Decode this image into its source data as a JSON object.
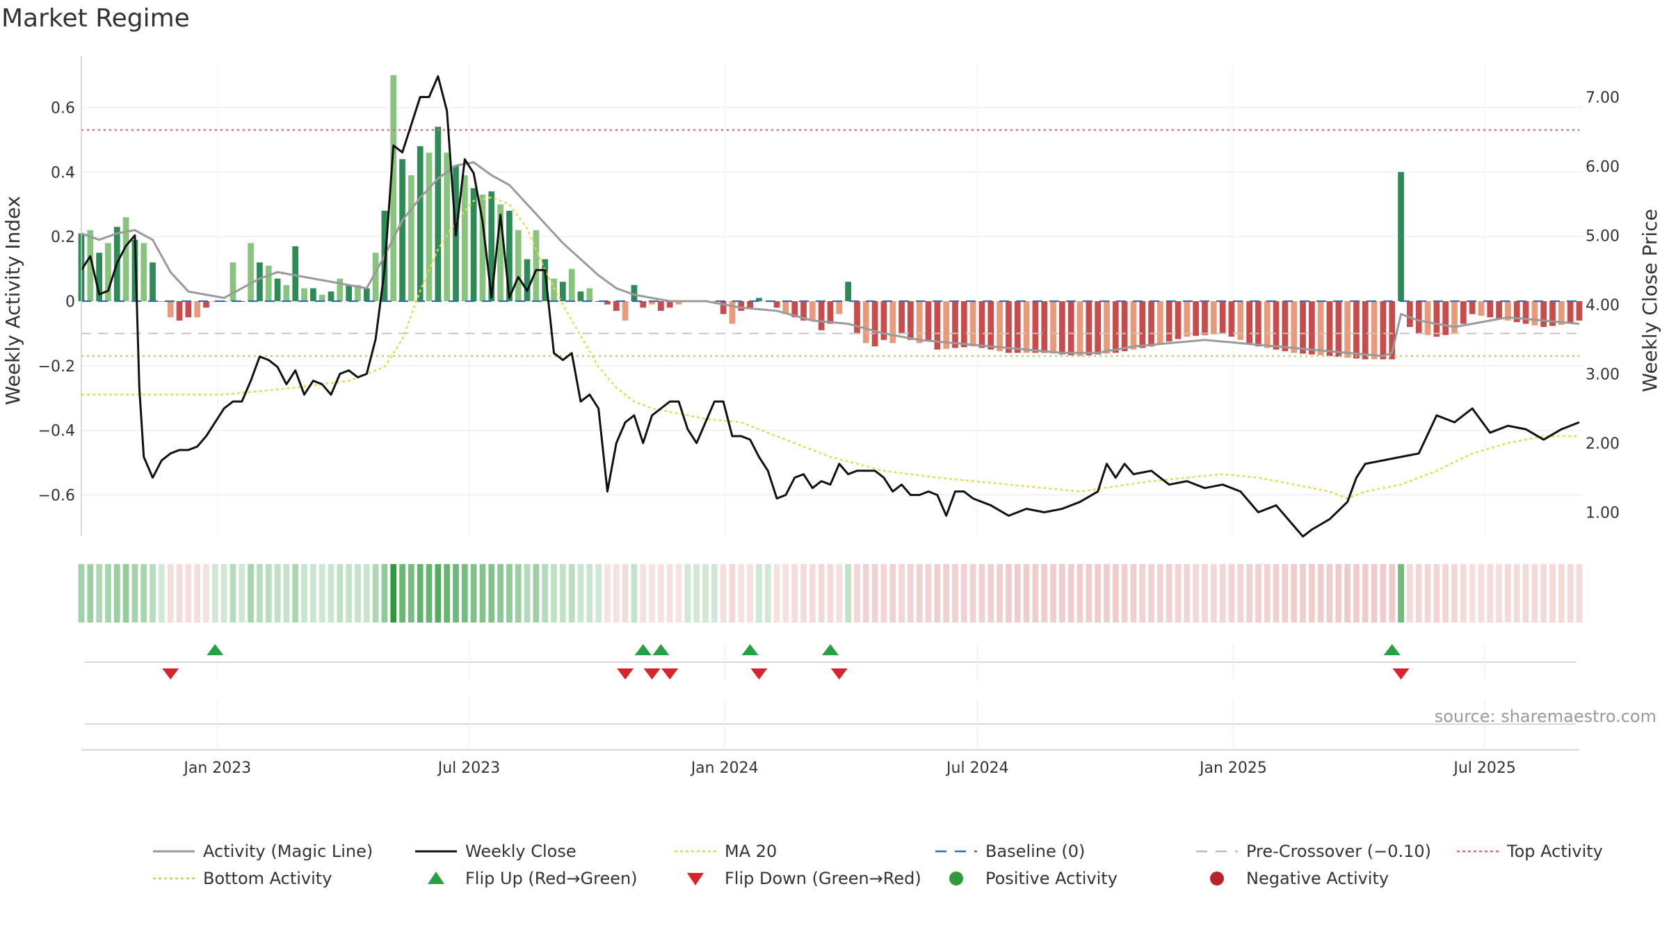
{
  "title": "Market Regime",
  "source": "source: sharemaestro.com",
  "chart_data": {
    "type": "bar+line",
    "x_range": [
      "2022-09-25",
      "2025-09-07"
    ],
    "x_ticks": [
      "Jan 2023",
      "Jul 2023",
      "Jan 2024",
      "Jul 2024",
      "Jan 2025",
      "Jul 2025"
    ],
    "x_tick_dates": [
      "2023-01-01",
      "2023-07-01",
      "2024-01-01",
      "2024-07-01",
      "2025-01-01",
      "2025-07-01"
    ],
    "ylabel_left": "Weekly Activity Index",
    "ylabel_right": "Weekly Close Price",
    "ylim_left": [
      -0.75,
      0.75
    ],
    "ylim_right": [
      0.5,
      7.5
    ],
    "y_ticks_left": [
      0.6,
      0.4,
      0.2,
      0,
      -0.2,
      -0.4,
      -0.6
    ],
    "y_tick_labels_left": [
      "0.6",
      "0.4",
      "0.2",
      "0",
      "−0.2",
      "−0.4",
      "−0.6"
    ],
    "y_ticks_right": [
      7,
      6,
      5,
      4,
      3,
      2,
      1
    ],
    "y_tick_labels_right": [
      "7.00",
      "6.00",
      "5.00",
      "4.00",
      "3.00",
      "2.00",
      "1.00"
    ],
    "reference_lines": {
      "top_activity": 0.53,
      "bottom_activity": -0.17,
      "pre_crossover": -0.1,
      "baseline": 0
    },
    "activity_keypoints": [
      [
        0,
        0.21
      ],
      [
        1,
        0.22
      ],
      [
        2,
        0.15
      ],
      [
        3,
        0.18
      ],
      [
        4,
        0.23
      ],
      [
        5,
        0.26
      ],
      [
        6,
        0.19
      ],
      [
        7,
        0.18
      ],
      [
        8,
        0.12
      ],
      [
        9,
        0.0
      ],
      [
        10,
        -0.05
      ],
      [
        11,
        -0.06
      ],
      [
        12,
        -0.05
      ],
      [
        13,
        -0.05
      ],
      [
        14,
        -0.02
      ],
      [
        15,
        0.0
      ],
      [
        16,
        0.0
      ],
      [
        17,
        0.12
      ],
      [
        18,
        0.0
      ],
      [
        19,
        0.18
      ],
      [
        20,
        0.12
      ],
      [
        21,
        0.11
      ],
      [
        22,
        0.07
      ],
      [
        23,
        0.05
      ],
      [
        24,
        0.17
      ],
      [
        25,
        0.04
      ],
      [
        26,
        0.04
      ],
      [
        27,
        0.02
      ],
      [
        28,
        0.03
      ],
      [
        29,
        0.07
      ],
      [
        30,
        0.05
      ],
      [
        31,
        0.05
      ],
      [
        32,
        0.04
      ],
      [
        33,
        0.15
      ],
      [
        34,
        0.28
      ],
      [
        35,
        0.7
      ],
      [
        36,
        0.44
      ],
      [
        37,
        0.39
      ],
      [
        38,
        0.48
      ],
      [
        39,
        0.46
      ],
      [
        40,
        0.54
      ],
      [
        41,
        0.46
      ],
      [
        42,
        0.42
      ],
      [
        43,
        0.39
      ],
      [
        44,
        0.35
      ],
      [
        45,
        0.33
      ],
      [
        46,
        0.34
      ],
      [
        47,
        0.3
      ],
      [
        48,
        0.28
      ],
      [
        49,
        0.22
      ],
      [
        50,
        0.13
      ],
      [
        51,
        0.22
      ],
      [
        52,
        0.13
      ],
      [
        53,
        0.07
      ],
      [
        54,
        0.06
      ],
      [
        55,
        0.1
      ],
      [
        56,
        0.03
      ],
      [
        57,
        0.04
      ],
      [
        58,
        0.0
      ],
      [
        59,
        -0.01
      ],
      [
        60,
        -0.03
      ],
      [
        61,
        -0.06
      ],
      [
        62,
        0.05
      ],
      [
        63,
        -0.02
      ],
      [
        64,
        -0.01
      ],
      [
        65,
        -0.03
      ],
      [
        66,
        -0.02
      ],
      [
        67,
        -0.01
      ],
      [
        68,
        0.0
      ],
      [
        69,
        0.0
      ],
      [
        70,
        0.0
      ],
      [
        71,
        0.0
      ],
      [
        72,
        -0.04
      ],
      [
        73,
        -0.07
      ],
      [
        74,
        -0.03
      ],
      [
        75,
        -0.02
      ],
      [
        76,
        0.01
      ],
      [
        77,
        0.0
      ],
      [
        78,
        -0.02
      ],
      [
        79,
        -0.04
      ],
      [
        80,
        -0.05
      ],
      [
        81,
        -0.06
      ],
      [
        82,
        -0.06
      ],
      [
        83,
        -0.09
      ],
      [
        84,
        -0.07
      ],
      [
        85,
        -0.04
      ],
      [
        86,
        0.06
      ],
      [
        87,
        -0.1
      ],
      [
        88,
        -0.13
      ],
      [
        89,
        -0.14
      ],
      [
        90,
        -0.12
      ],
      [
        91,
        -0.13
      ],
      [
        92,
        -0.1
      ],
      [
        93,
        -0.12
      ],
      [
        94,
        -0.13
      ],
      [
        95,
        -0.12
      ],
      [
        96,
        -0.15
      ],
      [
        100,
        -0.14
      ],
      [
        104,
        -0.16
      ],
      [
        108,
        -0.16
      ],
      [
        112,
        -0.17
      ],
      [
        116,
        -0.16
      ],
      [
        120,
        -0.14
      ],
      [
        124,
        -0.11
      ],
      [
        128,
        -0.1
      ],
      [
        132,
        -0.14
      ],
      [
        136,
        -0.16
      ],
      [
        140,
        -0.17
      ],
      [
        144,
        -0.18
      ],
      [
        147,
        -0.18
      ],
      [
        148,
        0.4
      ],
      [
        149,
        -0.08
      ],
      [
        150,
        -0.1
      ],
      [
        152,
        -0.11
      ],
      [
        154,
        -0.1
      ],
      [
        156,
        -0.04
      ],
      [
        158,
        -0.05
      ],
      [
        160,
        -0.06
      ],
      [
        164,
        -0.08
      ],
      [
        167,
        -0.07
      ],
      [
        168,
        -0.06
      ]
    ],
    "magic_line_keypoints": [
      [
        0,
        0.21
      ],
      [
        2,
        0.19
      ],
      [
        4,
        0.21
      ],
      [
        6,
        0.22
      ],
      [
        8,
        0.19
      ],
      [
        10,
        0.09
      ],
      [
        12,
        0.03
      ],
      [
        14,
        0.02
      ],
      [
        16,
        0.01
      ],
      [
        18,
        0.04
      ],
      [
        20,
        0.07
      ],
      [
        22,
        0.09
      ],
      [
        24,
        0.08
      ],
      [
        26,
        0.07
      ],
      [
        28,
        0.06
      ],
      [
        30,
        0.05
      ],
      [
        32,
        0.04
      ],
      [
        34,
        0.14
      ],
      [
        36,
        0.25
      ],
      [
        38,
        0.32
      ],
      [
        40,
        0.38
      ],
      [
        42,
        0.42
      ],
      [
        44,
        0.43
      ],
      [
        46,
        0.39
      ],
      [
        48,
        0.36
      ],
      [
        50,
        0.3
      ],
      [
        52,
        0.24
      ],
      [
        54,
        0.18
      ],
      [
        56,
        0.13
      ],
      [
        58,
        0.08
      ],
      [
        60,
        0.04
      ],
      [
        62,
        0.02
      ],
      [
        64,
        0.01
      ],
      [
        66,
        0.0
      ],
      [
        70,
        0.0
      ],
      [
        74,
        -0.02
      ],
      [
        78,
        -0.03
      ],
      [
        82,
        -0.06
      ],
      [
        86,
        -0.07
      ],
      [
        90,
        -0.1
      ],
      [
        94,
        -0.12
      ],
      [
        98,
        -0.13
      ],
      [
        102,
        -0.14
      ],
      [
        106,
        -0.15
      ],
      [
        110,
        -0.16
      ],
      [
        114,
        -0.16
      ],
      [
        118,
        -0.14
      ],
      [
        122,
        -0.13
      ],
      [
        126,
        -0.12
      ],
      [
        130,
        -0.13
      ],
      [
        134,
        -0.14
      ],
      [
        138,
        -0.15
      ],
      [
        142,
        -0.16
      ],
      [
        146,
        -0.17
      ],
      [
        147,
        -0.16
      ],
      [
        148,
        -0.04
      ],
      [
        150,
        -0.06
      ],
      [
        152,
        -0.07
      ],
      [
        154,
        -0.08
      ],
      [
        156,
        -0.07
      ],
      [
        158,
        -0.06
      ],
      [
        160,
        -0.05
      ],
      [
        164,
        -0.06
      ],
      [
        168,
        -0.07
      ]
    ],
    "close_keypoints": [
      [
        0,
        4.5
      ],
      [
        1,
        4.7
      ],
      [
        2,
        4.15
      ],
      [
        3,
        4.2
      ],
      [
        4,
        4.6
      ],
      [
        5,
        4.85
      ],
      [
        6,
        5.0
      ],
      [
        6.5,
        2.8
      ],
      [
        7,
        1.8
      ],
      [
        8,
        1.5
      ],
      [
        9,
        1.75
      ],
      [
        10,
        1.85
      ],
      [
        11,
        1.9
      ],
      [
        12,
        1.9
      ],
      [
        13,
        1.95
      ],
      [
        14,
        2.1
      ],
      [
        15,
        2.3
      ],
      [
        16,
        2.5
      ],
      [
        17,
        2.6
      ],
      [
        18,
        2.6
      ],
      [
        19,
        2.9
      ],
      [
        20,
        3.25
      ],
      [
        21,
        3.2
      ],
      [
        22,
        3.1
      ],
      [
        23,
        2.85
      ],
      [
        24,
        3.05
      ],
      [
        25,
        2.7
      ],
      [
        26,
        2.9
      ],
      [
        27,
        2.85
      ],
      [
        28,
        2.7
      ],
      [
        29,
        3.0
      ],
      [
        30,
        3.05
      ],
      [
        31,
        2.95
      ],
      [
        32,
        3.0
      ],
      [
        33,
        3.5
      ],
      [
        34,
        4.5
      ],
      [
        35,
        6.3
      ],
      [
        36,
        6.2
      ],
      [
        37,
        6.6
      ],
      [
        38,
        7.0
      ],
      [
        39,
        7.0
      ],
      [
        40,
        7.3
      ],
      [
        41,
        6.8
      ],
      [
        42,
        5.0
      ],
      [
        43,
        6.1
      ],
      [
        44,
        5.9
      ],
      [
        45,
        5.2
      ],
      [
        46,
        4.1
      ],
      [
        47,
        5.3
      ],
      [
        48,
        4.1
      ],
      [
        49,
        4.4
      ],
      [
        50,
        4.2
      ],
      [
        51,
        4.5
      ],
      [
        52,
        4.5
      ],
      [
        53,
        3.3
      ],
      [
        54,
        3.2
      ],
      [
        55,
        3.3
      ],
      [
        56,
        2.6
      ],
      [
        57,
        2.7
      ],
      [
        58,
        2.5
      ],
      [
        59,
        1.3
      ],
      [
        60,
        2.0
      ],
      [
        61,
        2.3
      ],
      [
        62,
        2.4
      ],
      [
        63,
        2.0
      ],
      [
        64,
        2.4
      ],
      [
        65,
        2.5
      ],
      [
        66,
        2.6
      ],
      [
        67,
        2.6
      ],
      [
        68,
        2.2
      ],
      [
        69,
        2.0
      ],
      [
        70,
        2.3
      ],
      [
        71,
        2.6
      ],
      [
        72,
        2.6
      ],
      [
        73,
        2.1
      ],
      [
        74,
        2.1
      ],
      [
        75,
        2.05
      ],
      [
        76,
        1.8
      ],
      [
        77,
        1.6
      ],
      [
        78,
        1.2
      ],
      [
        79,
        1.25
      ],
      [
        80,
        1.5
      ],
      [
        81,
        1.55
      ],
      [
        82,
        1.35
      ],
      [
        83,
        1.45
      ],
      [
        84,
        1.4
      ],
      [
        85,
        1.7
      ],
      [
        86,
        1.55
      ],
      [
        87,
        1.6
      ],
      [
        88,
        1.6
      ],
      [
        89,
        1.6
      ],
      [
        90,
        1.5
      ],
      [
        91,
        1.3
      ],
      [
        92,
        1.4
      ],
      [
        93,
        1.25
      ],
      [
        94,
        1.25
      ],
      [
        95,
        1.3
      ],
      [
        96,
        1.25
      ],
      [
        97,
        0.95
      ],
      [
        98,
        1.3
      ],
      [
        99,
        1.3
      ],
      [
        100,
        1.2
      ],
      [
        102,
        1.1
      ],
      [
        104,
        0.95
      ],
      [
        106,
        1.05
      ],
      [
        108,
        1.0
      ],
      [
        110,
        1.05
      ],
      [
        112,
        1.15
      ],
      [
        114,
        1.3
      ],
      [
        115,
        1.7
      ],
      [
        116,
        1.5
      ],
      [
        117,
        1.7
      ],
      [
        118,
        1.55
      ],
      [
        120,
        1.6
      ],
      [
        122,
        1.4
      ],
      [
        124,
        1.45
      ],
      [
        126,
        1.35
      ],
      [
        128,
        1.4
      ],
      [
        130,
        1.3
      ],
      [
        132,
        1.0
      ],
      [
        134,
        1.1
      ],
      [
        136,
        0.8
      ],
      [
        137,
        0.65
      ],
      [
        138,
        0.75
      ],
      [
        140,
        0.9
      ],
      [
        142,
        1.15
      ],
      [
        143,
        1.5
      ],
      [
        144,
        1.7
      ],
      [
        146,
        1.75
      ],
      [
        148,
        1.8
      ],
      [
        150,
        1.85
      ],
      [
        152,
        2.4
      ],
      [
        154,
        2.3
      ],
      [
        156,
        2.5
      ],
      [
        158,
        2.15
      ],
      [
        160,
        2.25
      ],
      [
        162,
        2.2
      ],
      [
        164,
        2.05
      ],
      [
        166,
        2.2
      ],
      [
        168,
        2.3
      ]
    ],
    "ma20_keypoints": [
      [
        0,
        2.7
      ],
      [
        16,
        2.7
      ],
      [
        24,
        2.8
      ],
      [
        30,
        2.9
      ],
      [
        34,
        3.1
      ],
      [
        36,
        3.5
      ],
      [
        38,
        4.2
      ],
      [
        40,
        4.8
      ],
      [
        42,
        5.2
      ],
      [
        44,
        5.5
      ],
      [
        46,
        5.55
      ],
      [
        48,
        5.45
      ],
      [
        50,
        5.1
      ],
      [
        52,
        4.5
      ],
      [
        54,
        4.0
      ],
      [
        56,
        3.55
      ],
      [
        58,
        3.1
      ],
      [
        60,
        2.8
      ],
      [
        62,
        2.6
      ],
      [
        64,
        2.5
      ],
      [
        66,
        2.45
      ],
      [
        68,
        2.4
      ],
      [
        70,
        2.35
      ],
      [
        74,
        2.3
      ],
      [
        76,
        2.2
      ],
      [
        80,
        2.0
      ],
      [
        84,
        1.8
      ],
      [
        90,
        1.6
      ],
      [
        96,
        1.5
      ],
      [
        104,
        1.4
      ],
      [
        112,
        1.3
      ],
      [
        120,
        1.45
      ],
      [
        124,
        1.5
      ],
      [
        128,
        1.55
      ],
      [
        132,
        1.5
      ],
      [
        136,
        1.4
      ],
      [
        140,
        1.3
      ],
      [
        142,
        1.2
      ],
      [
        144,
        1.3
      ],
      [
        148,
        1.4
      ],
      [
        152,
        1.6
      ],
      [
        156,
        1.85
      ],
      [
        160,
        2.0
      ],
      [
        164,
        2.1
      ],
      [
        168,
        2.1
      ]
    ],
    "flip_up_weeks": [
      15,
      63,
      65,
      75,
      84,
      147
    ],
    "flip_down_weeks": [
      10,
      61,
      64,
      66,
      76,
      85,
      148
    ],
    "regime_strip": "signed activity per week, green = positive, red = negative, intensity = magnitude",
    "legend": [
      {
        "label": "Activity (Magic Line)",
        "color": "#999999",
        "style": "line"
      },
      {
        "label": "Weekly Close",
        "color": "#111111",
        "style": "line"
      },
      {
        "label": "MA 20",
        "color": "#e8d84a",
        "style": "dotted"
      },
      {
        "label": "Baseline (0)",
        "color": "#2f6fa8",
        "style": "dashed"
      },
      {
        "label": "Pre-Crossover (−0.10)",
        "color": "#bbbbbb",
        "style": "dashed"
      },
      {
        "label": "Top Activity",
        "color": "#e0647a",
        "style": "dotted"
      },
      {
        "label": "Bottom Activity",
        "color": "#a6d96a",
        "style": "dotted"
      },
      {
        "label": "Flip Up (Red→Green)",
        "color": "#27a046",
        "style": "triangle-up"
      },
      {
        "label": "Flip Down (Green→Red)",
        "color": "#d7262b",
        "style": "triangle-down"
      },
      {
        "label": "Positive Activity",
        "color": "#2e9a3c",
        "style": "dot"
      },
      {
        "label": "Negative Activity",
        "color": "#b8232b",
        "style": "dot"
      }
    ],
    "legend_placement": "bottom"
  }
}
